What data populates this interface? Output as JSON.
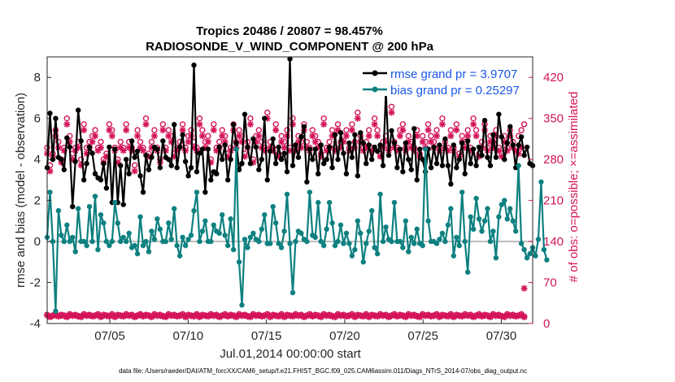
{
  "chart_data": {
    "type": "line",
    "title": "Tropics 20486 / 20807 = 98.457%",
    "subtitle": "RADIOSONDE_V_WIND_COMPONENT @ 200 hPa",
    "xlabel": "Jul.01,2014 00:00:00 start",
    "ylabel_left": "rmse and bias (model - observation)",
    "ylabel_right": "# of obs: o=possible; ×=assimilated",
    "footer": "data file: /Users/raeder/DAI/ATM_forcXX/CAM6_setup/f.e21.FHIST_BGC.f09_025.CAM6assim.011/Diags_NTrS_2014-07/obs_diag_output.nc",
    "xlim": [
      1,
      32
    ],
    "ylim_left": [
      -4,
      9
    ],
    "ylim_right": [
      0,
      455
    ],
    "x_ticks": [
      5,
      10,
      15,
      20,
      25,
      30
    ],
    "x_tick_labels": [
      "07/05",
      "07/10",
      "07/15",
      "07/20",
      "07/25",
      "07/30"
    ],
    "y_left_ticks": [
      -4,
      -2,
      0,
      2,
      4,
      6,
      8
    ],
    "y_left_tick_labels": [
      "-4",
      "-2",
      "0",
      "2",
      "4",
      "6",
      "8"
    ],
    "y_right_ticks": [
      0,
      70,
      140,
      210,
      280,
      350,
      420
    ],
    "y_right_tick_labels": [
      "0",
      "70",
      "140",
      "210",
      "280",
      "350",
      "420"
    ],
    "colors": {
      "rmse": "#000000",
      "bias": "#0e8080",
      "counts": "#d4145a",
      "zero": "#bdbdbd"
    },
    "legend": {
      "position": "top-right",
      "entries": [
        {
          "series": "rmse",
          "label": "rmse grand pr = 3.9707"
        },
        {
          "series": "bias",
          "label": "bias grand pr = 0.25297"
        }
      ]
    },
    "series": [
      {
        "name": "rmse",
        "values": [
          3.6,
          6.25,
          4.0,
          6.0,
          4.1,
          4.0,
          3.5,
          5.05,
          4.6,
          1.7,
          3.9,
          6.4,
          4.9,
          3.0,
          3.8,
          4.6,
          4.3,
          3.3,
          3.1,
          3.0,
          3.8,
          2.6,
          4.6,
          1.9,
          4.5,
          1.9,
          3.7,
          1.8,
          4.0,
          3.3,
          4.9,
          4.1,
          4.4,
          3.2,
          2.4,
          4.2,
          3.5,
          4.1,
          4.6,
          4.5,
          3.6,
          4.9,
          4.1,
          4.0,
          3.7,
          5.7,
          3.6,
          4.6,
          5.2,
          3.9,
          3.2,
          3.6,
          8.6,
          3.4,
          4.3,
          4.5,
          2.4,
          4.5,
          3.0,
          3.4,
          3.3,
          4.6,
          4.0,
          4.7,
          3.0,
          4.0,
          5.7,
          4.8,
          3.5,
          3.8,
          6.2,
          4.6,
          3.8,
          5.0,
          4.6,
          3.5,
          4.0,
          6.0,
          3.0,
          4.4,
          5.0,
          3.8,
          4.6,
          4.0,
          4.3,
          3.4,
          8.9,
          3.7,
          4.7,
          4.1,
          5.1,
          5.6,
          2.9,
          4.5,
          4.0,
          4.5,
          3.3,
          4.7,
          3.8,
          4.0,
          4.6,
          3.6,
          5.2,
          4.0,
          5.3,
          4.3,
          3.3,
          4.8,
          4.1,
          5.2,
          3.2,
          5.3,
          4.8,
          3.8,
          4.7,
          4.0,
          4.6,
          4.4,
          4.7,
          3.7,
          7.3,
          4.2,
          5.4,
          4.8,
          3.6,
          4.5,
          3.4,
          4.8,
          4.0,
          3.5,
          5.5,
          3.0,
          4.5,
          4.0,
          3.4,
          4.5,
          3.6,
          4.6,
          3.8,
          4.7,
          3.7,
          5.0,
          3.7,
          2.8,
          4.7,
          3.6,
          4.0,
          4.8,
          3.3,
          4.9,
          3.8,
          4.5,
          3.7,
          4.6,
          4.2,
          5.9,
          4.1,
          3.7,
          5.2,
          4.1,
          6.2,
          5.1,
          4.0,
          4.8,
          5.6,
          4.7,
          3.6,
          4.7,
          5.1,
          4.2,
          4.6,
          3.8,
          3.7
        ]
      },
      {
        "name": "bias",
        "values": [
          0.2,
          2.4,
          0.0,
          -3.4,
          1.5,
          0.3,
          0.0,
          0.8,
          0.0,
          0.2,
          -0.5,
          1.6,
          0.0,
          0.0,
          -0.2,
          1.7,
          0.0,
          2.2,
          -0.4,
          1.3,
          0.9,
          0.0,
          -0.2,
          0.0,
          1.9,
          0.9,
          0.0,
          0.2,
          0.0,
          0.4,
          -0.3,
          -0.2,
          -0.6,
          1.2,
          -0.2,
          0.0,
          -0.5,
          0.5,
          0.1,
          1.1,
          0.6,
          0.0,
          0.0,
          0.9,
          0.1,
          1.6,
          -0.2,
          -0.7,
          0.2,
          -0.2,
          0.1,
          0.3,
          1.5,
          2.4,
          0.0,
          0.5,
          1.0,
          0.0,
          0.0,
          0.8,
          0.5,
          0.4,
          1.3,
          0.3,
          -0.2,
          1.1,
          -0.4,
          4.5,
          -1.0,
          -3.1,
          0.1,
          -0.3,
          0.2,
          0.4,
          0.1,
          0.0,
          0.6,
          1.3,
          -0.1,
          -0.1,
          1.7,
          0.9,
          -0.1,
          -0.3,
          0.5,
          2.3,
          -0.1,
          -2.5,
          0.0,
          0.5,
          0.4,
          0.1,
          0.0,
          2.4,
          0.3,
          0.2,
          1.9,
          0.0,
          -0.2,
          0.6,
          1.9,
          0.9,
          -0.2,
          0.0,
          0.8,
          -0.1,
          0.4,
          -0.1,
          -0.7,
          -0.4,
          1.0,
          0.4,
          -1.0,
          -0.1,
          0.5,
          1.5,
          -0.3,
          -0.6,
          2.3,
          0.0,
          0.7,
          0.1,
          0.0,
          1.9,
          0.0,
          0.0,
          -0.3,
          1.0,
          -0.5,
          0.2,
          -0.1,
          0.6,
          -0.1,
          -0.2,
          4.5,
          1.0,
          0.0,
          0.0,
          -0.1,
          0.1,
          0.4,
          0.0,
          0.8,
          1.6,
          -0.7,
          0.2,
          -0.2,
          2.4,
          0.0,
          -1.5,
          1.2,
          0.6,
          2.1,
          1.1,
          0.5,
          1.0,
          1.6,
          0.0,
          0.5,
          -0.8,
          1.2,
          1.8,
          2.0,
          1.1,
          1.6,
          1.0,
          0.5,
          3.7,
          -0.1,
          -0.4,
          -0.8,
          -0.6,
          -0.3,
          -0.7,
          0.1,
          2.9,
          -0.4,
          -0.9
        ]
      }
    ],
    "counts_possible": [
      300,
      270,
      290,
      330,
      310,
      280,
      300,
      350,
      320,
      290,
      300,
      310,
      280,
      340,
      300,
      310,
      320,
      330,
      300,
      310,
      280,
      290,
      340,
      330,
      300,
      280,
      310,
      300,
      340,
      310,
      300,
      270,
      330,
      310,
      300,
      350,
      290,
      310,
      330,
      300,
      280,
      340,
      300,
      330,
      320,
      290,
      300,
      310,
      340,
      300,
      320,
      330,
      310,
      300,
      350,
      330,
      310,
      320,
      280,
      340,
      300,
      310,
      330,
      320,
      290,
      300,
      340,
      310,
      330,
      320,
      290,
      310,
      350,
      280,
      320,
      330,
      310,
      300,
      360,
      310,
      300,
      340,
      290,
      320,
      310,
      330,
      300,
      350,
      300,
      320,
      310,
      340,
      310,
      300,
      330,
      320,
      310,
      290,
      350,
      300,
      310,
      330,
      300,
      340,
      310,
      320,
      330,
      300,
      340,
      310,
      360,
      320,
      300,
      310,
      330,
      300,
      350,
      330,
      290,
      310,
      320,
      300,
      370,
      310,
      300,
      330,
      340,
      300,
      320,
      310,
      300,
      330,
      290,
      320,
      310,
      340,
      320,
      310,
      330,
      300,
      350,
      310,
      300,
      330,
      300,
      340,
      290,
      320,
      310,
      330,
      300,
      350,
      330,
      290,
      310,
      340,
      300,
      320,
      310,
      330,
      300,
      290,
      320,
      300,
      330,
      310,
      300,
      320,
      330,
      340
    ],
    "counts_assimilated": [
      290,
      260,
      285,
      320,
      300,
      275,
      295,
      340,
      310,
      280,
      295,
      300,
      270,
      330,
      290,
      300,
      310,
      320,
      295,
      300,
      275,
      285,
      330,
      320,
      295,
      275,
      300,
      295,
      330,
      300,
      295,
      260,
      320,
      300,
      295,
      340,
      285,
      300,
      320,
      295,
      275,
      330,
      295,
      320,
      310,
      285,
      295,
      300,
      330,
      295,
      310,
      320,
      300,
      295,
      340,
      320,
      300,
      310,
      275,
      330,
      295,
      300,
      320,
      310,
      285,
      295,
      330,
      300,
      320,
      310,
      285,
      300,
      340,
      275,
      310,
      320,
      300,
      295,
      350,
      300,
      295,
      330,
      285,
      310,
      300,
      320,
      295,
      340,
      295,
      310,
      300,
      330,
      300,
      295,
      320,
      310,
      300,
      285,
      340,
      295,
      300,
      320,
      295,
      330,
      300,
      310,
      320,
      295,
      330,
      300,
      350,
      310,
      295,
      300,
      320,
      295,
      340,
      320,
      285,
      300,
      310,
      295,
      360,
      300,
      295,
      320,
      330,
      295,
      310,
      300,
      295,
      320,
      285,
      310,
      300,
      330,
      310,
      300,
      320,
      295,
      340,
      300,
      295,
      320,
      295,
      330,
      285,
      310,
      300,
      320,
      295,
      340,
      320,
      285,
      300,
      330,
      295,
      310,
      300,
      320,
      295,
      285,
      310,
      295,
      320,
      300,
      295,
      290,
      300,
      60
    ],
    "counts_low_possible": [
      15,
      12,
      14,
      16,
      13,
      15,
      14,
      12,
      16,
      14,
      15,
      13,
      12,
      16,
      14,
      15,
      13,
      14,
      16,
      12,
      15,
      14,
      13,
      16,
      12,
      15,
      14,
      13,
      16,
      14,
      15,
      12,
      14,
      16,
      13,
      15,
      14,
      12,
      16,
      14,
      15,
      13,
      12,
      16,
      14,
      15,
      13,
      14,
      16,
      12,
      15,
      14,
      13,
      16,
      12,
      15,
      14,
      13,
      16,
      14,
      15,
      12,
      14,
      16,
      13,
      15,
      14,
      12,
      16,
      14,
      15,
      13,
      12,
      16,
      14,
      15,
      13,
      14,
      16,
      12,
      15,
      14,
      13,
      16,
      12,
      15,
      14,
      13,
      16,
      14,
      15,
      12,
      14,
      16,
      13,
      15,
      14,
      12,
      16,
      14,
      15,
      13,
      12,
      16,
      14,
      15,
      13,
      14,
      16,
      12,
      15,
      14,
      13,
      16,
      12,
      15,
      14,
      13,
      16,
      14,
      15,
      12,
      14,
      16,
      13,
      15,
      14,
      12,
      16,
      14,
      15,
      13,
      12,
      16,
      14,
      15,
      13,
      14,
      16,
      12,
      15,
      14,
      13,
      16,
      12,
      15,
      14,
      13,
      16,
      14,
      15,
      12,
      14,
      16,
      13,
      15,
      14,
      12,
      16,
      14,
      15,
      13,
      12,
      16,
      14,
      15,
      13,
      14,
      16,
      12
    ],
    "counts_low_assimilated": [
      14,
      11,
      13,
      15,
      12,
      14,
      13,
      11,
      15,
      13,
      14,
      12,
      11,
      15,
      13,
      14,
      12,
      13,
      15,
      11,
      14,
      13,
      12,
      15,
      11,
      14,
      13,
      12,
      15,
      13,
      14,
      11,
      13,
      15,
      12,
      14,
      13,
      11,
      15,
      13,
      14,
      12,
      11,
      15,
      13,
      14,
      12,
      13,
      15,
      11,
      14,
      13,
      12,
      15,
      11,
      14,
      13,
      12,
      15,
      13,
      14,
      11,
      13,
      15,
      12,
      14,
      13,
      11,
      15,
      13,
      14,
      12,
      11,
      15,
      13,
      14,
      12,
      13,
      15,
      11,
      14,
      13,
      12,
      15,
      11,
      14,
      13,
      12,
      15,
      13,
      14,
      11,
      13,
      15,
      12,
      14,
      13,
      11,
      15,
      13,
      14,
      12,
      11,
      15,
      13,
      14,
      12,
      13,
      15,
      11,
      14,
      13,
      12,
      15,
      11,
      14,
      13,
      12,
      15,
      13,
      14,
      11,
      13,
      15,
      12,
      14,
      13,
      11,
      15,
      13,
      14,
      12,
      11,
      15,
      13,
      14,
      12,
      13,
      15,
      11,
      14,
      13,
      12,
      15,
      11,
      14,
      13,
      12,
      15,
      13,
      14,
      11,
      13,
      15,
      12,
      14,
      13,
      11,
      15,
      13,
      14,
      12,
      11,
      15,
      13,
      14,
      12,
      13,
      15,
      11
    ]
  }
}
